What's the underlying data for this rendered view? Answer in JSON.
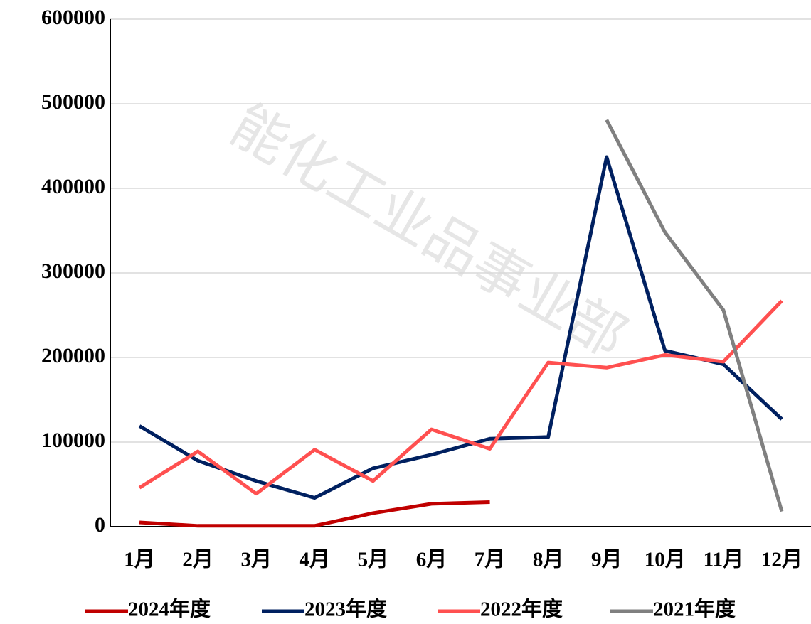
{
  "chart_data": {
    "type": "line",
    "watermark": "能化工业品事业部",
    "categories": [
      "1月",
      "2月",
      "3月",
      "4月",
      "5月",
      "6月",
      "7月",
      "8月",
      "9月",
      "10月",
      "11月",
      "12月"
    ],
    "series": [
      {
        "name": "2024年度",
        "color": "#c00000",
        "values": [
          5000,
          1000,
          1000,
          1000,
          16000,
          27000,
          29000,
          null,
          null,
          null,
          null,
          null
        ]
      },
      {
        "name": "2023年度",
        "color": "#002060",
        "values": [
          119000,
          78000,
          54000,
          34000,
          69000,
          85000,
          104000,
          106000,
          437000,
          208000,
          192000,
          127000
        ]
      },
      {
        "name": "2022年度",
        "color": "#ff5050",
        "values": [
          46000,
          89000,
          39000,
          91000,
          54000,
          115000,
          92000,
          194000,
          188000,
          203000,
          195000,
          267000
        ]
      },
      {
        "name": "2021年度",
        "color": "#808080",
        "values": [
          null,
          null,
          null,
          null,
          null,
          null,
          null,
          null,
          481000,
          348000,
          256000,
          18000
        ]
      }
    ],
    "ylim": [
      0,
      600000
    ],
    "yticks": [
      0,
      100000,
      200000,
      300000,
      400000,
      500000,
      600000
    ],
    "grid": true,
    "legend": "bottom"
  }
}
